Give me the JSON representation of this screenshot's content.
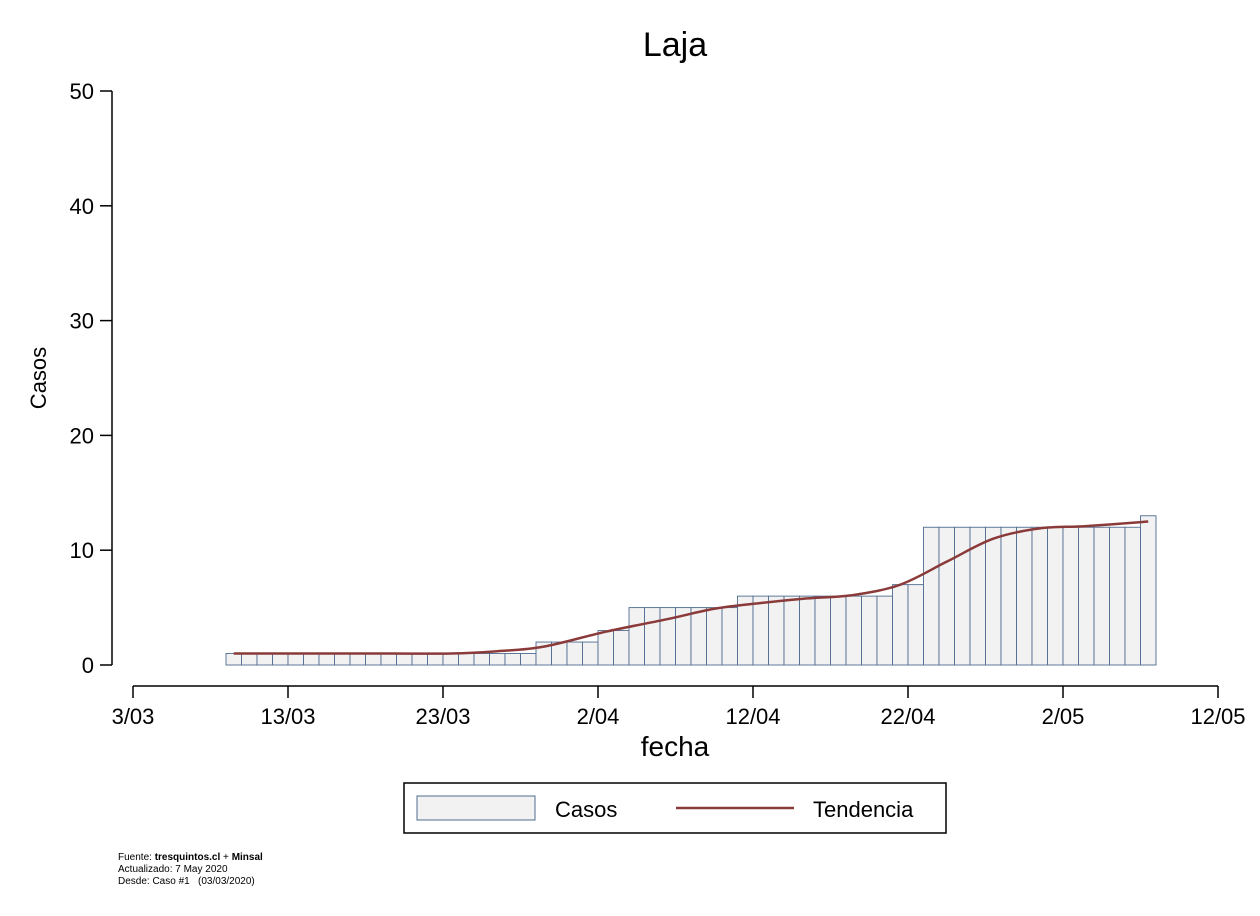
{
  "chart_data": {
    "type": "bar",
    "title": "Laja",
    "xlabel": "fecha",
    "ylabel": "Casos",
    "ylim": [
      0,
      50
    ],
    "yticks": [
      0,
      10,
      20,
      30,
      40,
      50
    ],
    "xlim": [
      "2020-03-03",
      "2020-05-12"
    ],
    "xticks": [
      "2020-03-03",
      "2020-03-13",
      "2020-03-23",
      "2020-04-02",
      "2020-04-12",
      "2020-04-22",
      "2020-05-02",
      "2020-05-12"
    ],
    "xtick_labels": [
      "3/03",
      "13/03",
      "23/03",
      "2/04",
      "12/04",
      "22/04",
      "2/05",
      "12/05"
    ],
    "grid": false,
    "legend_position": "bottom",
    "series": [
      {
        "name": "Casos",
        "kind": "bar",
        "color": "#f2f2f2",
        "edge_color": "#4f6b8f",
        "x": [
          "2020-03-09",
          "2020-03-10",
          "2020-03-11",
          "2020-03-12",
          "2020-03-13",
          "2020-03-14",
          "2020-03-15",
          "2020-03-16",
          "2020-03-17",
          "2020-03-18",
          "2020-03-19",
          "2020-03-20",
          "2020-03-21",
          "2020-03-22",
          "2020-03-23",
          "2020-03-24",
          "2020-03-25",
          "2020-03-26",
          "2020-03-27",
          "2020-03-28",
          "2020-03-29",
          "2020-03-30",
          "2020-03-31",
          "2020-04-01",
          "2020-04-02",
          "2020-04-03",
          "2020-04-04",
          "2020-04-05",
          "2020-04-06",
          "2020-04-07",
          "2020-04-08",
          "2020-04-09",
          "2020-04-10",
          "2020-04-11",
          "2020-04-12",
          "2020-04-13",
          "2020-04-14",
          "2020-04-15",
          "2020-04-16",
          "2020-04-17",
          "2020-04-18",
          "2020-04-19",
          "2020-04-20",
          "2020-04-21",
          "2020-04-22",
          "2020-04-23",
          "2020-04-24",
          "2020-04-25",
          "2020-04-26",
          "2020-04-27",
          "2020-04-28",
          "2020-04-29",
          "2020-04-30",
          "2020-05-01",
          "2020-05-02",
          "2020-05-03",
          "2020-05-04",
          "2020-05-05",
          "2020-05-06",
          "2020-05-07"
        ],
        "values": [
          1,
          1,
          1,
          1,
          1,
          1,
          1,
          1,
          1,
          1,
          1,
          1,
          1,
          1,
          1,
          1,
          1,
          1,
          1,
          1,
          2,
          2,
          2,
          2,
          3,
          3,
          5,
          5,
          5,
          5,
          5,
          5,
          5,
          6,
          6,
          6,
          6,
          6,
          6,
          6,
          6,
          6,
          6,
          7,
          7,
          12,
          12,
          12,
          12,
          12,
          12,
          12,
          12,
          12,
          12,
          12,
          12,
          12,
          12,
          13
        ]
      },
      {
        "name": "Tendencia",
        "kind": "line",
        "color": "#8b3a3a",
        "x": [
          "2020-03-09",
          "2020-03-19",
          "2020-03-23",
          "2020-03-26",
          "2020-03-29",
          "2020-04-02",
          "2020-04-06",
          "2020-04-09",
          "2020-04-12",
          "2020-04-15",
          "2020-04-18",
          "2020-04-21",
          "2020-04-24",
          "2020-04-27",
          "2020-04-30",
          "2020-05-03",
          "2020-05-07"
        ],
        "values": [
          1,
          1,
          1,
          1.2,
          1.6,
          2.9,
          4.0,
          4.9,
          5.4,
          5.8,
          6.1,
          7.0,
          9.0,
          11.0,
          11.9,
          12.1,
          12.5
        ]
      }
    ]
  },
  "footer": {
    "line1_prefix": "Fuente: ",
    "line1_source": "tresquintos.cl",
    "line1_plus": " + ",
    "line1_source2": "Minsal",
    "line2": "Actualizado: 7 May 2020",
    "line3": "Desde: Caso #1   (03/03/2020)"
  }
}
